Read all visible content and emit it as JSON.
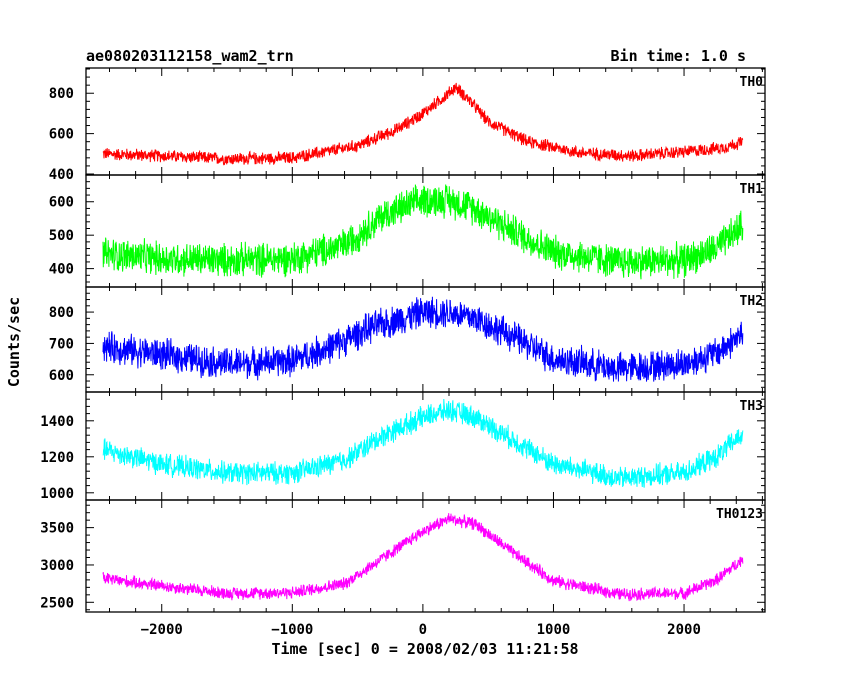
{
  "chart_data": {
    "type": "line",
    "title": "ae080203112158_wam2_trn",
    "subtitle": "Bin time: 1.0 s",
    "xlabel": "Time [sec] 0 = 2008/02/03 11:21:58",
    "ylabel": "Counts/sec",
    "xlim": [
      -2580,
      2620
    ],
    "xticks": [
      -2000,
      -1000,
      0,
      1000,
      2000
    ],
    "xtick_labels": [
      "−2000",
      "−1000",
      "0",
      "1000",
      "2000"
    ],
    "panels": [
      {
        "name": "TH0",
        "color": "#ff0000",
        "ylim": [
          395,
          925
        ],
        "yticks": [
          400,
          600,
          800
        ],
        "x": [
          -2450,
          -2000,
          -1500,
          -1000,
          -500,
          -200,
          0,
          100,
          180,
          250,
          350,
          500,
          800,
          1200,
          1600,
          2000,
          2300,
          2450
        ],
        "y": [
          500,
          490,
          475,
          480,
          540,
          620,
          700,
          750,
          790,
          830,
          770,
          660,
          560,
          505,
          490,
          510,
          530,
          560
        ],
        "noise": 28
      },
      {
        "name": "TH1",
        "color": "#00ff00",
        "ylim": [
          345,
          680
        ],
        "yticks": [
          400,
          500,
          600
        ],
        "x": [
          -2450,
          -2000,
          -1500,
          -1000,
          -600,
          -300,
          0,
          200,
          400,
          700,
          1000,
          1500,
          2000,
          2250,
          2450
        ],
        "y": [
          445,
          430,
          425,
          430,
          470,
          560,
          605,
          605,
          580,
          510,
          450,
          420,
          425,
          460,
          530
        ],
        "noise": 45
      },
      {
        "name": "TH2",
        "color": "#0000ff",
        "ylim": [
          545,
          880
        ],
        "yticks": [
          600,
          700,
          800
        ],
        "x": [
          -2450,
          -2000,
          -1500,
          -1000,
          -700,
          -400,
          0,
          200,
          400,
          700,
          1000,
          1500,
          2000,
          2250,
          2450
        ],
        "y": [
          690,
          665,
          635,
          645,
          690,
          750,
          800,
          800,
          780,
          720,
          650,
          620,
          635,
          670,
          730
        ],
        "noise": 45
      },
      {
        "name": "TH3",
        "color": "#00ffff",
        "ylim": [
          960,
          1560
        ],
        "yticks": [
          1000,
          1200,
          1400
        ],
        "x": [
          -2450,
          -2000,
          -1500,
          -1000,
          -600,
          -300,
          0,
          200,
          400,
          700,
          1000,
          1500,
          2000,
          2250,
          2450
        ],
        "y": [
          1240,
          1160,
          1110,
          1110,
          1180,
          1320,
          1420,
          1460,
          1420,
          1290,
          1160,
          1080,
          1110,
          1200,
          1330
        ],
        "noise": 55
      },
      {
        "name": "TH0123",
        "color": "#ff00ff",
        "ylim": [
          2370,
          3870
        ],
        "yticks": [
          2500,
          3000,
          3500
        ],
        "x": [
          -2450,
          -2000,
          -1500,
          -1000,
          -600,
          -300,
          0,
          200,
          400,
          700,
          1000,
          1500,
          2000,
          2250,
          2450
        ],
        "y": [
          2820,
          2720,
          2620,
          2630,
          2750,
          3100,
          3450,
          3620,
          3550,
          3150,
          2790,
          2610,
          2620,
          2800,
          3080
        ],
        "noise": 75
      }
    ]
  }
}
